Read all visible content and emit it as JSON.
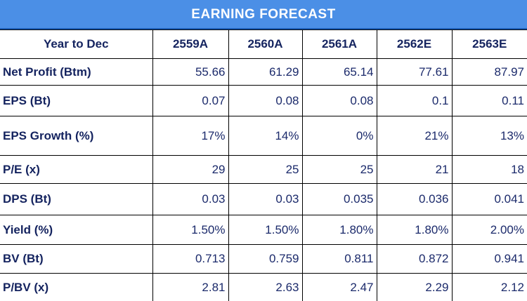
{
  "title": "EARNING FORECAST",
  "header": {
    "label": "Year to Dec",
    "years": [
      "2559A",
      "2560A",
      "2561A",
      "2562E",
      "2563E"
    ]
  },
  "rows": [
    {
      "label": "Net Profit (Btm)",
      "values": [
        "55.66",
        "61.29",
        "65.14",
        "77.61",
        "87.97"
      ]
    },
    {
      "label": "EPS (Bt)",
      "values": [
        "0.07",
        "0.08",
        "0.08",
        "0.1",
        "0.11"
      ]
    },
    {
      "label": "EPS Growth (%)",
      "values": [
        "17%",
        "14%",
        "0%",
        "21%",
        "13%"
      ]
    },
    {
      "label": "P/E (x)",
      "values": [
        "29",
        "25",
        "25",
        "21",
        "18"
      ]
    },
    {
      "label": "DPS (Bt)",
      "values": [
        "0.03",
        "0.03",
        "0.035",
        "0.036",
        "0.041"
      ]
    },
    {
      "label": "Yield (%)",
      "values": [
        "1.50%",
        "1.50%",
        "1.80%",
        "1.80%",
        "2.00%"
      ]
    },
    {
      "label": "BV (Bt)",
      "values": [
        "0.713",
        "0.759",
        "0.811",
        "0.872",
        "0.941"
      ]
    },
    {
      "label": "P/BV (x)",
      "values": [
        "2.81",
        "2.63",
        "2.47",
        "2.29",
        "2.12"
      ]
    }
  ],
  "colors": {
    "title_bg": "#4b8fe6",
    "title_text": "#ffffff",
    "label_text": "#14235f",
    "value_text": "#1b2a6b",
    "grid": "#000000"
  }
}
